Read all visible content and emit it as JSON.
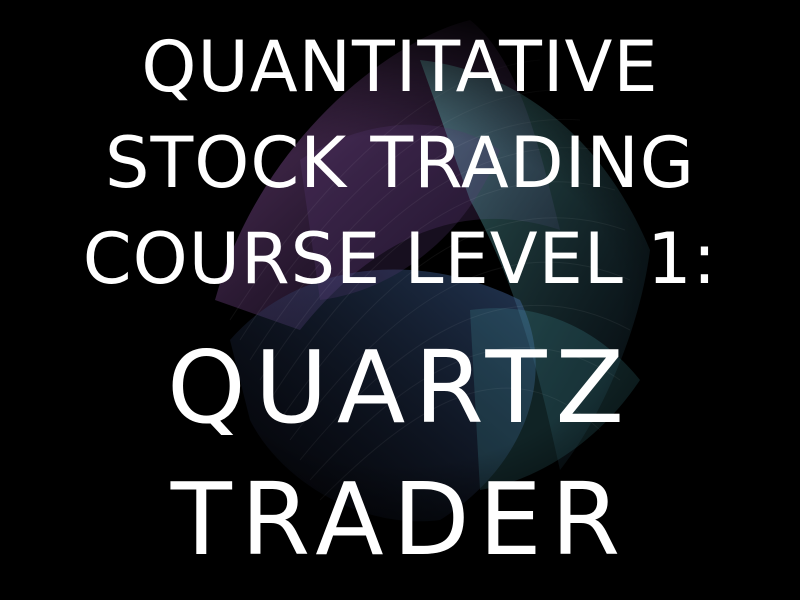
{
  "cover": {
    "title_lines": [
      "QUANTITATIVE",
      "STOCK TRADING",
      "COURSE LEVEL 1:"
    ],
    "product_lines": [
      "QUARTZ",
      "TRADER"
    ]
  },
  "colors": {
    "background": "#000000",
    "text": "#ffffff",
    "art_purple": "#7a3f86",
    "art_teal": "#4fa3a6",
    "art_blue": "#3b5f9b"
  }
}
